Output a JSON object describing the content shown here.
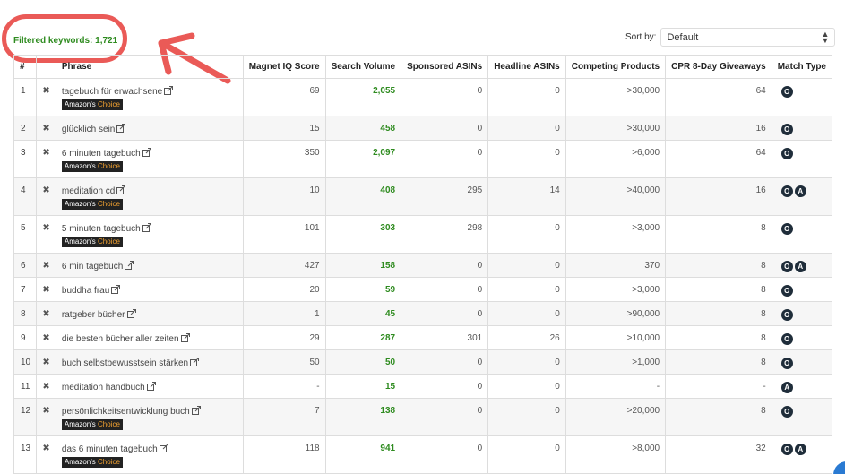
{
  "header": {
    "filtered_label": "Filtered keywords: 1,721",
    "sort_label": "Sort by:",
    "sort_value": "Default"
  },
  "table": {
    "columns": [
      "#",
      "Phrase",
      "Magnet IQ Score",
      "Search Volume",
      "Sponsored ASINs",
      "Headline ASINs",
      "Competing Products",
      "CPR 8-Day Giveaways",
      "Match Type"
    ],
    "badge_prefix": "Amazon's",
    "badge_accent": "Choice",
    "rows": [
      {
        "num": "1",
        "phrase": "tagebuch für erwachsene",
        "badge": true,
        "iq": "69",
        "sv": "2,055",
        "sponsored": "0",
        "headline": "0",
        "competing": ">30,000",
        "cpr": "64",
        "match": [
          "O"
        ]
      },
      {
        "num": "2",
        "phrase": "glücklich sein",
        "badge": false,
        "iq": "15",
        "sv": "458",
        "sponsored": "0",
        "headline": "0",
        "competing": ">30,000",
        "cpr": "16",
        "match": [
          "O"
        ]
      },
      {
        "num": "3",
        "phrase": "6 minuten tagebuch",
        "badge": true,
        "iq": "350",
        "sv": "2,097",
        "sponsored": "0",
        "headline": "0",
        "competing": ">6,000",
        "cpr": "64",
        "match": [
          "O"
        ]
      },
      {
        "num": "4",
        "phrase": "meditation cd",
        "badge": true,
        "iq": "10",
        "sv": "408",
        "sponsored": "295",
        "headline": "14",
        "competing": ">40,000",
        "cpr": "16",
        "match": [
          "O",
          "A"
        ]
      },
      {
        "num": "5",
        "phrase": "5 minuten tagebuch",
        "badge": true,
        "iq": "101",
        "sv": "303",
        "sponsored": "298",
        "headline": "0",
        "competing": ">3,000",
        "cpr": "8",
        "match": [
          "O"
        ]
      },
      {
        "num": "6",
        "phrase": "6 min tagebuch",
        "badge": false,
        "iq": "427",
        "sv": "158",
        "sponsored": "0",
        "headline": "0",
        "competing": "370",
        "cpr": "8",
        "match": [
          "O",
          "A"
        ]
      },
      {
        "num": "7",
        "phrase": "buddha frau",
        "badge": false,
        "iq": "20",
        "sv": "59",
        "sponsored": "0",
        "headline": "0",
        "competing": ">3,000",
        "cpr": "8",
        "match": [
          "O"
        ]
      },
      {
        "num": "8",
        "phrase": "ratgeber bücher",
        "badge": false,
        "iq": "1",
        "sv": "45",
        "sponsored": "0",
        "headline": "0",
        "competing": ">90,000",
        "cpr": "8",
        "match": [
          "O"
        ]
      },
      {
        "num": "9",
        "phrase": "die besten bücher aller zeiten",
        "badge": false,
        "iq": "29",
        "sv": "287",
        "sponsored": "301",
        "headline": "26",
        "competing": ">10,000",
        "cpr": "8",
        "match": [
          "O"
        ]
      },
      {
        "num": "10",
        "phrase": "buch selbstbewusstsein stärken",
        "badge": false,
        "iq": "50",
        "sv": "50",
        "sponsored": "0",
        "headline": "0",
        "competing": ">1,000",
        "cpr": "8",
        "match": [
          "O"
        ]
      },
      {
        "num": "11",
        "phrase": "meditation handbuch",
        "badge": false,
        "iq": "-",
        "sv": "15",
        "sponsored": "0",
        "headline": "0",
        "competing": "-",
        "cpr": "-",
        "match": [
          "A"
        ]
      },
      {
        "num": "12",
        "phrase": "persönlichkeitsentwicklung buch",
        "badge": true,
        "iq": "7",
        "sv": "138",
        "sponsored": "0",
        "headline": "0",
        "competing": ">20,000",
        "cpr": "8",
        "match": [
          "O"
        ]
      },
      {
        "num": "13",
        "phrase": "das 6 minuten tagebuch",
        "badge": true,
        "iq": "118",
        "sv": "941",
        "sponsored": "0",
        "headline": "0",
        "competing": ">8,000",
        "cpr": "32",
        "match": [
          "O",
          "A"
        ]
      }
    ]
  },
  "colors": {
    "green": "#2e8b1f",
    "highlight": "#ea5a57",
    "badge_accent": "#f0a030",
    "match_badge": "#1f2d3a"
  },
  "icons": {
    "delete": "close-icon",
    "external": "external-link-icon",
    "sort_caret": "chevron-updown-icon"
  }
}
